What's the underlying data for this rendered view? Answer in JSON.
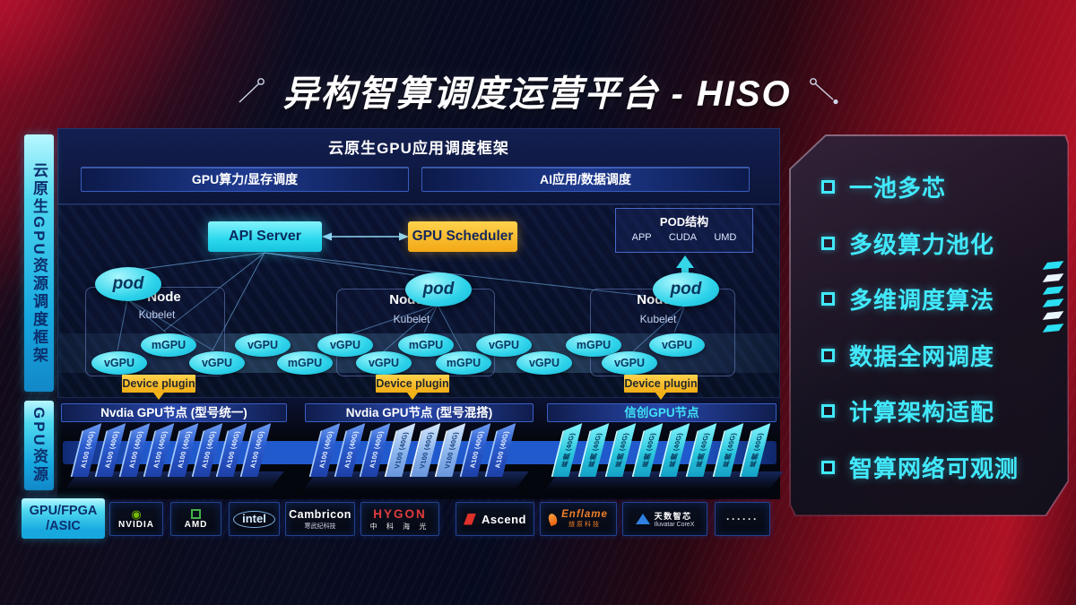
{
  "title": "异构智算调度运营平台 - HISO",
  "left_rail": {
    "cloud_native_label": "云原生GPU资源调度框架",
    "gpu_resource_label": "GPU资源",
    "chip_label_line1": "GPU/FPGA",
    "chip_label_line2": "/ASIC"
  },
  "scheduler_frame": {
    "title": "云原生GPU应用调度框架",
    "bars": [
      "GPU算力/显存调度",
      "AI应用/数据调度"
    ]
  },
  "control_plane": {
    "api_server": "API Server",
    "gpu_scheduler": "GPU Scheduler",
    "pod_struct": {
      "title": "POD结构",
      "items": [
        "APP",
        "CUDA",
        "UMD"
      ]
    }
  },
  "nodes": [
    {
      "pod": "pod",
      "label": "Node",
      "kubelet": "Kubelet",
      "device_plugin": "Device plugin"
    },
    {
      "pod": "pod",
      "label": "Node",
      "kubelet": "Kubelet",
      "device_plugin": "Device plugin"
    },
    {
      "pod": "pod",
      "label": "Node",
      "kubelet": "Kubelet",
      "device_plugin": "Device plugin"
    }
  ],
  "gpu_ellipses": [
    "vGPU",
    "mGPU",
    "vGPU",
    "vGPU",
    "mGPU",
    "vGPU",
    "vGPU",
    "mGPU",
    "mGPU",
    "vGPU",
    "vGPU",
    "mGPU",
    "vGPU",
    "vGPU"
  ],
  "gpu_nodes": [
    {
      "header": "Nvdia GPU节点 (型号统一)",
      "cards": [
        "A100 (40G)",
        "A100 (40G)",
        "A100 (40G)",
        "A100 (40G)",
        "A100 (40G)",
        "A100 (40G)",
        "A100 (40G)",
        "A100 (40G)"
      ],
      "card_colors": [
        "blue",
        "blue",
        "blue",
        "blue",
        "blue",
        "blue",
        "blue",
        "blue"
      ]
    },
    {
      "header": "Nvdia GPU节点 (型号混搭)",
      "cards": [
        "A100 (40G)",
        "A100 (40G)",
        "A100 (40G)",
        "V100 (40G)",
        "V100 (40G)",
        "V100 (40G)",
        "A100 (40G)",
        "A100 (40G)"
      ],
      "card_colors": [
        "blue",
        "blue",
        "blue",
        "light",
        "light",
        "light",
        "blue",
        "blue"
      ]
    },
    {
      "header": "信创GPU节点",
      "cards": [
        "昇腾 (40G)",
        "昇腾 (40G)",
        "昇腾 (40G)",
        "昇腾 (40G)",
        "昇腾 (40G)",
        "昇腾 (40G)",
        "昇腾 (40G)",
        "昇腾 (40G)"
      ],
      "card_colors": [
        "cyan",
        "cyan",
        "cyan",
        "cyan",
        "cyan",
        "cyan",
        "cyan",
        "cyan"
      ]
    }
  ],
  "vendors": [
    {
      "name": "NVIDIA",
      "icon": "nvidia-eye-icon",
      "glyph": "◉"
    },
    {
      "name": "AMD",
      "icon": "amd-square-icon"
    },
    {
      "name": "intel"
    },
    {
      "name": "Cambricon",
      "sub": "寒武纪科技"
    },
    {
      "name": "HYGON",
      "sub": "中 科 海 光"
    },
    {
      "name": "Ascend",
      "icon": "ascend-flag-icon"
    },
    {
      "name": "Enflame",
      "sub": "燧原科技",
      "icon": "enflame-flame-icon"
    },
    {
      "name": "天数智芯",
      "sub": "Iluvatar CoreX",
      "icon": "iluvatar-triangle-icon"
    },
    {
      "name": "······"
    }
  ],
  "features": [
    "一池多芯",
    "多级算力池化",
    "多维调度算法",
    "数据全网调度",
    "计算架构适配",
    "智算网络可观测"
  ],
  "colors": {
    "accent_cyan": "#38e2f2",
    "gold": "#f2b319",
    "node_bar_blue": "#1e3a8f",
    "card_blue": "#2f62d4",
    "card_light_blue": "#9cc6f2",
    "card_cyan": "#3adcee",
    "feature_text": "#41e9fb",
    "bg_red": "#a50d22"
  }
}
